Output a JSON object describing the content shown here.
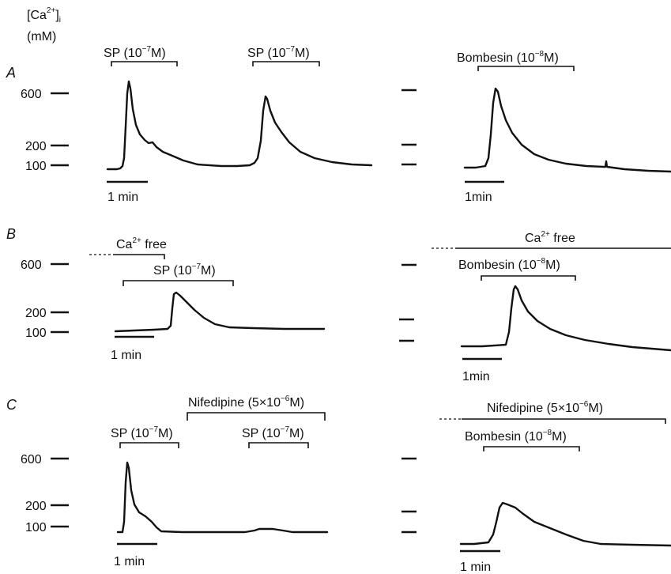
{
  "y_axis": {
    "label": "[Ca2+]i",
    "label_parts": {
      "main": "[Ca",
      "sup": "2+",
      "close": "]",
      "sub": "i"
    },
    "unit": "(mM)"
  },
  "tick_labels": [
    "600",
    "200",
    "100"
  ],
  "scale_bar_text": [
    "1 min",
    "1 min",
    "1min",
    "1min",
    "1 min",
    "1 min"
  ],
  "stimulus_labels": {
    "sp": {
      "base": "SP (10",
      "exp": "−7",
      "unit": "M)"
    },
    "bombesin": {
      "base": "Bombesin (10",
      "exp": "−8",
      "unit": "M)"
    },
    "ca_free": {
      "base": "Ca",
      "sup": "2+",
      "rest": " free"
    },
    "nifedipine": {
      "base": "Nifedipine (5×10",
      "exp": "−6",
      "unit": "M)"
    }
  },
  "panel_labels": [
    "A",
    "B",
    "C"
  ],
  "chart_data": [
    {
      "panel": "A",
      "type": "line",
      "ylabel": "[Ca2+]i (mM)",
      "yticks": [
        100,
        200,
        600
      ],
      "scale_bar": "1 min",
      "traces": [
        {
          "stimulus_periods": [
            "SP (10−7M)",
            "SP (10−7M)"
          ],
          "x_min": [
            0,
            0.4,
            0.8,
            1.0,
            1.5,
            2.0,
            3.0,
            4.0,
            4.5,
            4.8,
            5.5,
            6.5,
            7.5,
            8.5,
            9.5
          ],
          "y_nM": [
            70,
            70,
            80,
            640,
            450,
            220,
            160,
            100,
            100,
            100,
            540,
            260,
            130,
            100,
            100
          ]
        },
        {
          "stimulus_periods": [
            "Bombesin (10−8M)"
          ],
          "x_min": [
            0,
            0.8,
            1.1,
            1.5,
            2.5,
            3.5,
            5.0,
            6.5
          ],
          "y_nM": [
            80,
            90,
            650,
            400,
            180,
            130,
            100,
            85
          ]
        }
      ]
    },
    {
      "panel": "B",
      "type": "line",
      "ylabel": "[Ca2+]i (mM)",
      "yticks": [
        100,
        200,
        600
      ],
      "scale_bar": "1 min",
      "traces": [
        {
          "stimulus_periods": [
            "Ca2+ free",
            "SP (10−7M)"
          ],
          "x_min": [
            0,
            1.5,
            2.0,
            2.2,
            2.8,
            3.6,
            4.5,
            6.0,
            7.0
          ],
          "y_nM": [
            110,
            115,
            120,
            330,
            260,
            150,
            120,
            115,
            115
          ]
        },
        {
          "stimulus_periods": [
            "Ca2+ free",
            "Bombesin (10−8M)"
          ],
          "x_min": [
            0,
            1.1,
            1.4,
            1.8,
            2.7,
            3.7,
            5.0,
            7.0
          ],
          "y_nM": [
            70,
            80,
            550,
            400,
            200,
            130,
            90,
            80
          ]
        }
      ]
    },
    {
      "panel": "C",
      "type": "line",
      "ylabel": "[Ca2+]i (mM)",
      "yticks": [
        100,
        200,
        600
      ],
      "scale_bar": "1 min",
      "traces": [
        {
          "stimulus_periods": [
            "SP (10−7M)",
            "Nifedipine (5×10−6M)",
            "SP (10−7M)"
          ],
          "x_min": [
            0,
            0.3,
            0.5,
            1.0,
            1.8,
            2.5,
            4.0,
            5.5,
            6.0,
            6.5,
            7.5
          ],
          "y_nM": [
            90,
            90,
            590,
            260,
            140,
            90,
            90,
            90,
            100,
            100,
            90
          ]
        },
        {
          "stimulus_periods": [
            "Nifedipine (5×10−6M)",
            "Bombesin (10−8M)"
          ],
          "x_min": [
            0,
            0.9,
            1.3,
            2.0,
            3.0,
            4.5,
            5.5,
            7.0
          ],
          "y_nM": [
            80,
            90,
            330,
            300,
            220,
            160,
            100,
            85
          ]
        }
      ]
    }
  ]
}
